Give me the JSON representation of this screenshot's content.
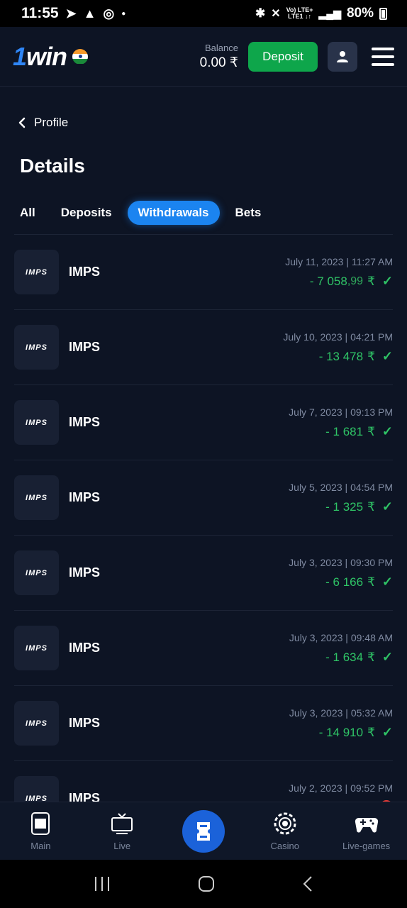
{
  "status_bar": {
    "time": "11:55",
    "network_top": "Vo) LTE+",
    "network_bottom": "LTE1 ↓↑",
    "battery": "80%"
  },
  "header": {
    "logo_prefix": "1",
    "logo_text": "win",
    "balance_label": "Balance",
    "balance_value": "0.00 ₹",
    "deposit_label": "Deposit"
  },
  "back_label": "Profile",
  "page_title": "Details",
  "tabs": [
    "All",
    "Deposits",
    "Withdrawals",
    "Bets"
  ],
  "active_tab": "Withdrawals",
  "transactions": [
    {
      "logo": "IMPS",
      "name": "IMPS",
      "date": "July 11, 2023 | 11:27 AM",
      "amount": "- 7 058",
      "cents": ",99",
      "currency": "₹",
      "status": "success"
    },
    {
      "logo": "IMPS",
      "name": "IMPS",
      "date": "July 10, 2023 | 04:21 PM",
      "amount": "- 13 478",
      "cents": "",
      "currency": "₹",
      "status": "success"
    },
    {
      "logo": "IMPS",
      "name": "IMPS",
      "date": "July 7, 2023 | 09:13 PM",
      "amount": "- 1 681",
      "cents": "",
      "currency": "₹",
      "status": "success"
    },
    {
      "logo": "IMPS",
      "name": "IMPS",
      "date": "July 5, 2023 | 04:54 PM",
      "amount": "- 1 325",
      "cents": "",
      "currency": "₹",
      "status": "success"
    },
    {
      "logo": "IMPS",
      "name": "IMPS",
      "date": "July 3, 2023 | 09:30 PM",
      "amount": "- 6 166",
      "cents": "",
      "currency": "₹",
      "status": "success"
    },
    {
      "logo": "IMPS",
      "name": "IMPS",
      "date": "July 3, 2023 | 09:48 AM",
      "amount": "- 1 634",
      "cents": "",
      "currency": "₹",
      "status": "success"
    },
    {
      "logo": "IMPS",
      "name": "IMPS",
      "date": "July 3, 2023 | 05:32 AM",
      "amount": "- 14 910",
      "cents": "",
      "currency": "₹",
      "status": "success"
    },
    {
      "logo": "IMPS",
      "name": "IMPS",
      "date": "July 2, 2023 | 09:52 PM",
      "amount": "",
      "cents": "",
      "currency": "",
      "status": "partial"
    }
  ],
  "bottom_nav": {
    "main": "Main",
    "live": "Live",
    "casino": "Casino",
    "live_games": "Live-games"
  },
  "colors": {
    "background": "#0d1424",
    "accent_blue": "#1b84f0",
    "deposit_green": "#0ea64b",
    "amount_green": "#2fc466"
  }
}
